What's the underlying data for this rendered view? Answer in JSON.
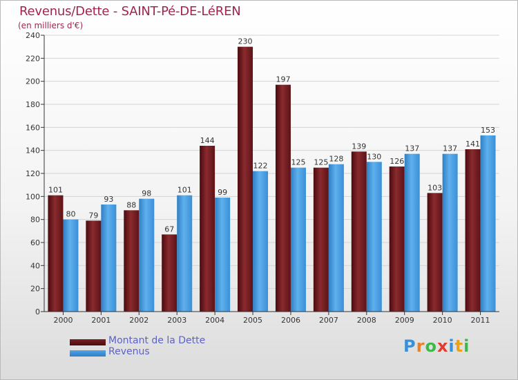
{
  "title": "Revenus/Dette - SAINT-Pé-DE-LéREN",
  "subtitle": "(en milliers d'€)",
  "logo": {
    "letters": [
      "P",
      "r",
      "o",
      "x",
      "i",
      "t",
      "i"
    ],
    "colors": [
      "#3a8fd6",
      "#e8802a",
      "#3db84a",
      "#e23b2e",
      "#3a8fd6",
      "#e8a21e",
      "#3db84a"
    ]
  },
  "colors": {
    "dette": "#7a1f23",
    "dette_dark": "#4a0b0e",
    "revenus": "#4fa3e6",
    "revenus_dark": "#2f7fc4"
  },
  "chart_data": {
    "type": "bar",
    "title": "Revenus/Dette - SAINT-Pé-DE-LéREN",
    "ylabel": "(en milliers d'€)",
    "xlabel": "",
    "ylim": [
      0,
      240
    ],
    "yticks": [
      0,
      20,
      40,
      60,
      80,
      100,
      120,
      140,
      160,
      180,
      200,
      220,
      240
    ],
    "grid": true,
    "legend_position": "bottom-left",
    "categories": [
      "2000",
      "2001",
      "2002",
      "2003",
      "2004",
      "2005",
      "2006",
      "2007",
      "2008",
      "2009",
      "2010",
      "2011"
    ],
    "series": [
      {
        "name": "Montant de la Dette",
        "values": [
          101,
          79,
          88,
          67,
          144,
          230,
          197,
          125,
          139,
          126,
          103,
          141
        ]
      },
      {
        "name": "Revenus",
        "values": [
          80,
          93,
          98,
          101,
          99,
          122,
          125,
          128,
          130,
          137,
          137,
          153
        ]
      }
    ]
  }
}
